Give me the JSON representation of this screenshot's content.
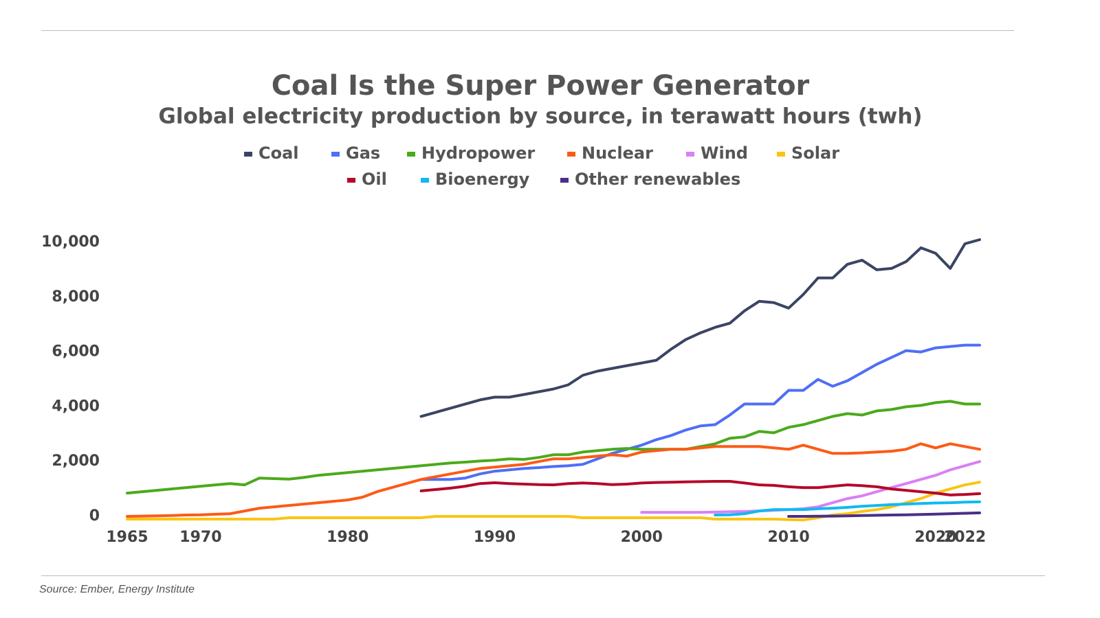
{
  "chart_data": {
    "type": "line",
    "title": "Coal Is the Super Power Generator",
    "subtitle": "Global electricity production by source, in terawatt hours (twh)",
    "source": "Source: Ember, Energy Institute",
    "x": [
      1965,
      1966,
      1967,
      1968,
      1969,
      1970,
      1971,
      1972,
      1973,
      1974,
      1975,
      1976,
      1977,
      1978,
      1979,
      1980,
      1981,
      1982,
      1983,
      1984,
      1985,
      1986,
      1987,
      1988,
      1989,
      1990,
      1991,
      1992,
      1993,
      1994,
      1995,
      1996,
      1997,
      1998,
      1999,
      2000,
      2001,
      2002,
      2003,
      2004,
      2005,
      2006,
      2007,
      2008,
      2009,
      2010,
      2011,
      2012,
      2013,
      2014,
      2015,
      2016,
      2017,
      2018,
      2019,
      2020,
      2021,
      2022,
      2023
    ],
    "xlim": [
      1965,
      2023
    ],
    "xticks": [
      1965,
      1970,
      1980,
      1990,
      2000,
      2010,
      2020,
      2022
    ],
    "ylim": [
      -500,
      10500
    ],
    "yticks": [
      0,
      {
        "value": 2000,
        "label": "2,000"
      },
      {
        "value": 4000,
        "label": "4,000"
      },
      {
        "value": 6000,
        "label": "6,000"
      },
      {
        "value": 8000,
        "label": "8,000"
      },
      {
        "value": 10000,
        "label": "10,000"
      }
    ],
    "grid": false,
    "series": [
      {
        "name": "Coal",
        "color": "#3b4463",
        "values": [
          null,
          null,
          null,
          null,
          null,
          null,
          null,
          null,
          null,
          null,
          null,
          null,
          null,
          null,
          null,
          null,
          null,
          null,
          null,
          null,
          3650,
          3800,
          3950,
          4100,
          4250,
          4350,
          4350,
          4450,
          4550,
          4650,
          4800,
          5150,
          5300,
          5400,
          5500,
          5600,
          5700,
          6100,
          6450,
          6700,
          6900,
          7050,
          7500,
          7850,
          7800,
          7600,
          8100,
          8700,
          8700,
          9200,
          9350,
          9000,
          9050,
          9300,
          9800,
          9600,
          9050,
          9950,
          10100
        ]
      },
      {
        "name": "Gas",
        "color": "#4f6ef7",
        "values": [
          null,
          null,
          null,
          null,
          null,
          null,
          null,
          null,
          null,
          null,
          null,
          null,
          null,
          null,
          null,
          null,
          null,
          null,
          null,
          null,
          1350,
          1350,
          1350,
          1400,
          1550,
          1650,
          1700,
          1750,
          1780,
          1820,
          1850,
          1900,
          2100,
          2300,
          2450,
          2600,
          2800,
          2950,
          3150,
          3300,
          3350,
          3700,
          4100,
          4100,
          4100,
          4600,
          4600,
          5000,
          4750,
          4950,
          5250,
          5550,
          5800,
          6050,
          6000,
          6150,
          6200,
          6250,
          6250
        ]
      },
      {
        "name": "Hydropower",
        "color": "#4aaa1b",
        "values": [
          850,
          900,
          950,
          1000,
          1050,
          1100,
          1150,
          1200,
          1150,
          1400,
          1380,
          1360,
          1420,
          1500,
          1550,
          1600,
          1650,
          1700,
          1750,
          1800,
          1850,
          1900,
          1950,
          1980,
          2020,
          2050,
          2100,
          2080,
          2150,
          2250,
          2250,
          2350,
          2400,
          2450,
          2480,
          2450,
          2450,
          2450,
          2450,
          2550,
          2650,
          2850,
          2900,
          3100,
          3050,
          3250,
          3350,
          3500,
          3650,
          3750,
          3700,
          3850,
          3900,
          4000,
          4050,
          4150,
          4200,
          4100,
          4100
        ]
      },
      {
        "name": "Nuclear",
        "color": "#fd5a16",
        "values": [
          0,
          10,
          20,
          30,
          50,
          60,
          80,
          100,
          200,
          300,
          350,
          400,
          450,
          500,
          550,
          600,
          700,
          900,
          1050,
          1200,
          1350,
          1450,
          1550,
          1650,
          1750,
          1800,
          1850,
          1900,
          2000,
          2100,
          2100,
          2150,
          2200,
          2250,
          2200,
          2350,
          2400,
          2450,
          2450,
          2500,
          2550,
          2550,
          2550,
          2550,
          2500,
          2450,
          2600,
          2450,
          2300,
          2300,
          2320,
          2350,
          2380,
          2450,
          2650,
          2500,
          2650,
          2550,
          2450
        ]
      },
      {
        "name": "Wind",
        "color": "#d980f5",
        "values": [
          null,
          null,
          null,
          null,
          null,
          null,
          null,
          null,
          null,
          null,
          null,
          null,
          null,
          null,
          null,
          null,
          null,
          null,
          null,
          null,
          null,
          null,
          null,
          null,
          null,
          null,
          null,
          null,
          null,
          null,
          null,
          null,
          null,
          null,
          null,
          150,
          150,
          150,
          150,
          150,
          160,
          170,
          180,
          200,
          220,
          250,
          280,
          350,
          500,
          650,
          750,
          900,
          1050,
          1200,
          1350,
          1500,
          1700,
          1850,
          2000
        ]
      },
      {
        "name": "Solar",
        "color": "#f9c414",
        "values": [
          -100,
          -100,
          -100,
          -100,
          -100,
          -100,
          -100,
          -100,
          -100,
          -100,
          -100,
          -50,
          -50,
          -50,
          -50,
          -50,
          -50,
          -50,
          -50,
          -50,
          -50,
          0,
          0,
          0,
          0,
          0,
          0,
          0,
          0,
          0,
          0,
          -50,
          -50,
          -50,
          -50,
          -50,
          -50,
          -50,
          -50,
          -50,
          -100,
          -100,
          -100,
          -100,
          -100,
          -120,
          -130,
          -50,
          50,
          100,
          180,
          250,
          350,
          500,
          650,
          850,
          1000,
          1150,
          1250
        ]
      },
      {
        "name": "Oil",
        "color": "#b5082a",
        "values": [
          null,
          null,
          null,
          null,
          null,
          null,
          null,
          null,
          null,
          null,
          null,
          null,
          null,
          null,
          null,
          null,
          null,
          null,
          null,
          null,
          930,
          980,
          1030,
          1100,
          1200,
          1230,
          1200,
          1180,
          1160,
          1150,
          1200,
          1220,
          1200,
          1160,
          1180,
          1220,
          1240,
          1250,
          1260,
          1270,
          1280,
          1280,
          1220,
          1150,
          1130,
          1080,
          1050,
          1050,
          1100,
          1150,
          1120,
          1080,
          1000,
          950,
          900,
          850,
          780,
          800,
          830
        ]
      },
      {
        "name": "Bioenergy",
        "color": "#11b9f0",
        "values": [
          null,
          null,
          null,
          null,
          null,
          null,
          null,
          null,
          null,
          null,
          null,
          null,
          null,
          null,
          null,
          null,
          null,
          null,
          null,
          null,
          null,
          null,
          null,
          null,
          null,
          null,
          null,
          null,
          null,
          null,
          null,
          null,
          null,
          null,
          null,
          null,
          null,
          null,
          null,
          null,
          50,
          60,
          100,
          200,
          250,
          250,
          250,
          280,
          300,
          330,
          370,
          400,
          430,
          450,
          470,
          490,
          500,
          520,
          530
        ]
      },
      {
        "name": "Other renewables",
        "color": "#4b2f86",
        "values": [
          null,
          null,
          null,
          null,
          null,
          null,
          null,
          null,
          null,
          null,
          null,
          null,
          null,
          null,
          null,
          null,
          null,
          null,
          null,
          null,
          null,
          null,
          null,
          null,
          null,
          null,
          null,
          null,
          null,
          null,
          null,
          null,
          null,
          null,
          null,
          null,
          null,
          null,
          null,
          null,
          null,
          null,
          null,
          null,
          null,
          0,
          0,
          5,
          10,
          20,
          30,
          40,
          50,
          60,
          70,
          85,
          100,
          115,
          130
        ]
      }
    ]
  }
}
